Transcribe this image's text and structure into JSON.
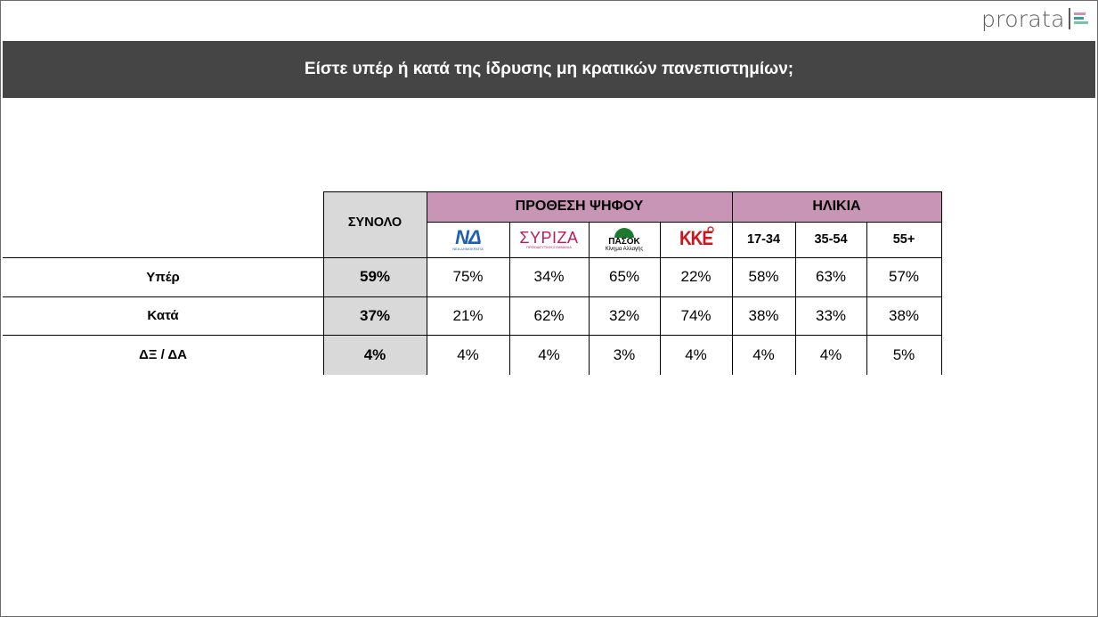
{
  "brand": {
    "name": "prorata",
    "mark_colors": [
      "#c995b6",
      "#3a9aa0",
      "#7dbfa8"
    ]
  },
  "title": "Είστε υπέρ ή κατά της ίδρυσης μη κρατικών πανεπιστημίων;",
  "colors": {
    "header_bg": "#454545",
    "group_header_bg": "#c995b6",
    "total_col_bg": "#d9d9d9"
  },
  "chart_data": {
    "type": "table",
    "title": "Είστε υπέρ ή κατά της ίδρυσης μη κρατικών πανεπιστημίων;",
    "total_header": "ΣΥΝΟΛΟ",
    "groups": [
      {
        "name": "ΠΡΟΘΕΣΗ ΨΗΦΟΥ",
        "columns": [
          {
            "logo": "nd-logo",
            "text": "ΝΔ",
            "sub": "ΝΕΑ ΔΗΜΟΚΡΑΤΙΑ",
            "color": "#1e5fb3"
          },
          {
            "logo": "syriza-logo",
            "text": "ΣΥΡΙΖΑ",
            "sub": "ΠΡΟΟΔΕΥΤΙΚΗ ΣΥΜΜΑΧΙΑ",
            "color": "#c0185b"
          },
          {
            "logo": "pasok-logo",
            "text": "ΠΑΣΟΚ",
            "sub": "Κίνημα Αλλαγής",
            "color": "#1c7a2e"
          },
          {
            "logo": "kke-logo",
            "text": "ΚΚΕ",
            "color": "#d1121a"
          }
        ]
      },
      {
        "name": "ΗΛΙΚΙΑ",
        "columns": [
          {
            "text": "17-34"
          },
          {
            "text": "35-54"
          },
          {
            "text": "55+"
          }
        ]
      }
    ],
    "rows": [
      {
        "label": "Υπέρ",
        "total": "59%",
        "values": [
          "75%",
          "34%",
          "65%",
          "22%",
          "58%",
          "63%",
          "57%"
        ]
      },
      {
        "label": "Κατά",
        "total": "37%",
        "values": [
          "21%",
          "62%",
          "32%",
          "74%",
          "38%",
          "33%",
          "38%"
        ]
      },
      {
        "label": "ΔΞ / ΔΑ",
        "total": "4%",
        "values": [
          "4%",
          "4%",
          "3%",
          "4%",
          "4%",
          "4%",
          "5%"
        ]
      }
    ]
  }
}
